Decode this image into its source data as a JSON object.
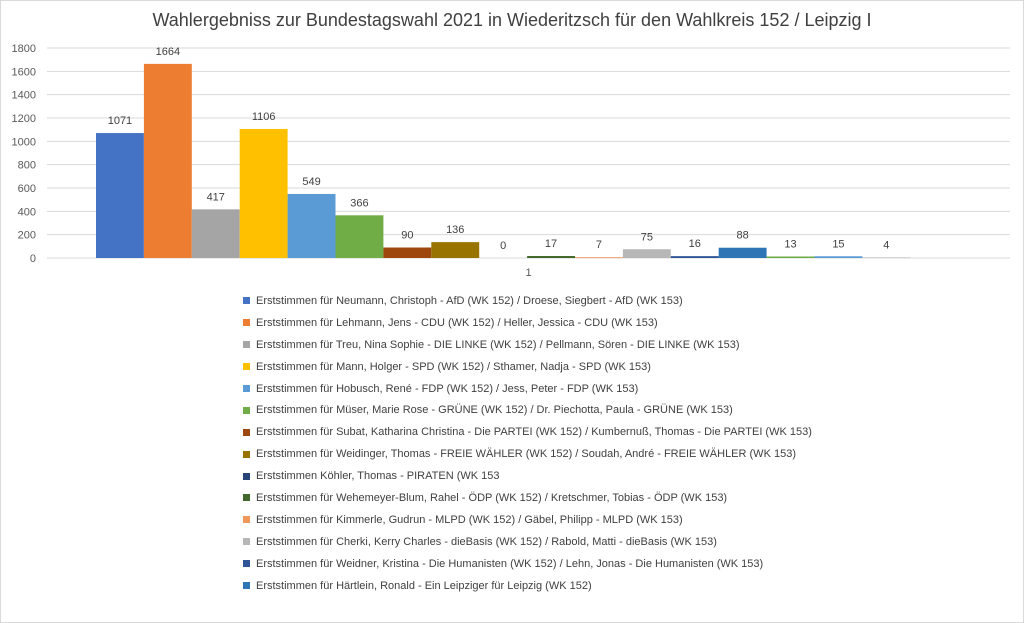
{
  "chart_data": {
    "type": "bar",
    "title": "Wahlergebniss zur Bundestagswahl 2021 in Wiederitzsch für den Wahlkreis 152 / Leipzig I",
    "categories": [
      "1"
    ],
    "ylim": [
      0,
      1800
    ],
    "yticks": [
      0,
      200,
      400,
      600,
      800,
      1000,
      1200,
      1400,
      1600,
      1800
    ],
    "grid": true,
    "legend_position": "bottom",
    "series": [
      {
        "name": "Erststimmen für Neumann, Christoph - AfD (WK 152) / Droese, Siegbert - AfD (WK 153)",
        "value": 1071,
        "color": "#4472c4"
      },
      {
        "name": "Erststimmen für Lehmann, Jens - CDU (WK 152) / Heller, Jessica - CDU (WK 153)",
        "value": 1664,
        "color": "#ed7d31"
      },
      {
        "name": "Erststimmen für Treu, Nina Sophie - DIE LINKE (WK 152) / Pellmann, Sören - DIE LINKE (WK 153)",
        "value": 417,
        "color": "#a5a5a5"
      },
      {
        "name": "Erststimmen für Mann, Holger - SPD (WK 152) / Sthamer, Nadja - SPD (WK 153)",
        "value": 1106,
        "color": "#ffc000"
      },
      {
        "name": "Erststimmen für Hobusch, René - FDP (WK 152) / Jess, Peter - FDP (WK 153)",
        "value": 549,
        "color": "#5b9bd5"
      },
      {
        "name": "Erststimmen für Müser, Marie Rose - GRÜNE (WK 152) / Dr. Piechotta, Paula - GRÜNE (WK 153)",
        "value": 366,
        "color": "#70ad47"
      },
      {
        "name": "Erststimmen für Subat, Katharina Christina - Die PARTEI (WK 152) / Kumbernuß, Thomas - Die PARTEI (WK 153)",
        "value": 90,
        "color": "#9e480e"
      },
      {
        "name": "Erststimmen für Weidinger, Thomas - FREIE WÄHLER (WK 152) / Soudah, André - FREIE WÄHLER (WK 153)",
        "value": 136,
        "color": "#997300"
      },
      {
        "name": "Erststimmen Köhler, Thomas - PIRATEN (WK 153",
        "value": 0,
        "color": "#264478"
      },
      {
        "name": "Erststimmen für Wehemeyer-Blum, Rahel - ÖDP (WK 152) / Kretschmer, Tobias - ÖDP (WK 153)",
        "value": 17,
        "color": "#43682b"
      },
      {
        "name": "Erststimmen für Kimmerle, Gudrun - MLPD (WK 152) / Gäbel, Philipp - MLPD (WK 153)",
        "value": 7,
        "color": "#f1975a"
      },
      {
        "name": "Erststimmen für Cherki, Kerry Charles - dieBasis (WK 152) / Rabold, Matti - dieBasis (WK 153)",
        "value": 75,
        "color": "#b7b7b7"
      },
      {
        "name": "Erststimmen für Weidner, Kristina - Die Humanisten (WK 152) / Lehn, Jonas - Die Humanisten (WK 153)",
        "value": 16,
        "color": "#2f5597"
      },
      {
        "name": "Erststimmen für Härtlein, Ronald - Ein Leipziger für Leipzig (WK 152)",
        "value": 88,
        "color": "#2e75b6"
      },
      {
        "name": "",
        "value": 13,
        "color": "#70ad47"
      },
      {
        "name": "",
        "value": 15,
        "color": "#5b9bd5"
      },
      {
        "name": "",
        "value": 4,
        "color": "#a5a5a5"
      }
    ]
  }
}
